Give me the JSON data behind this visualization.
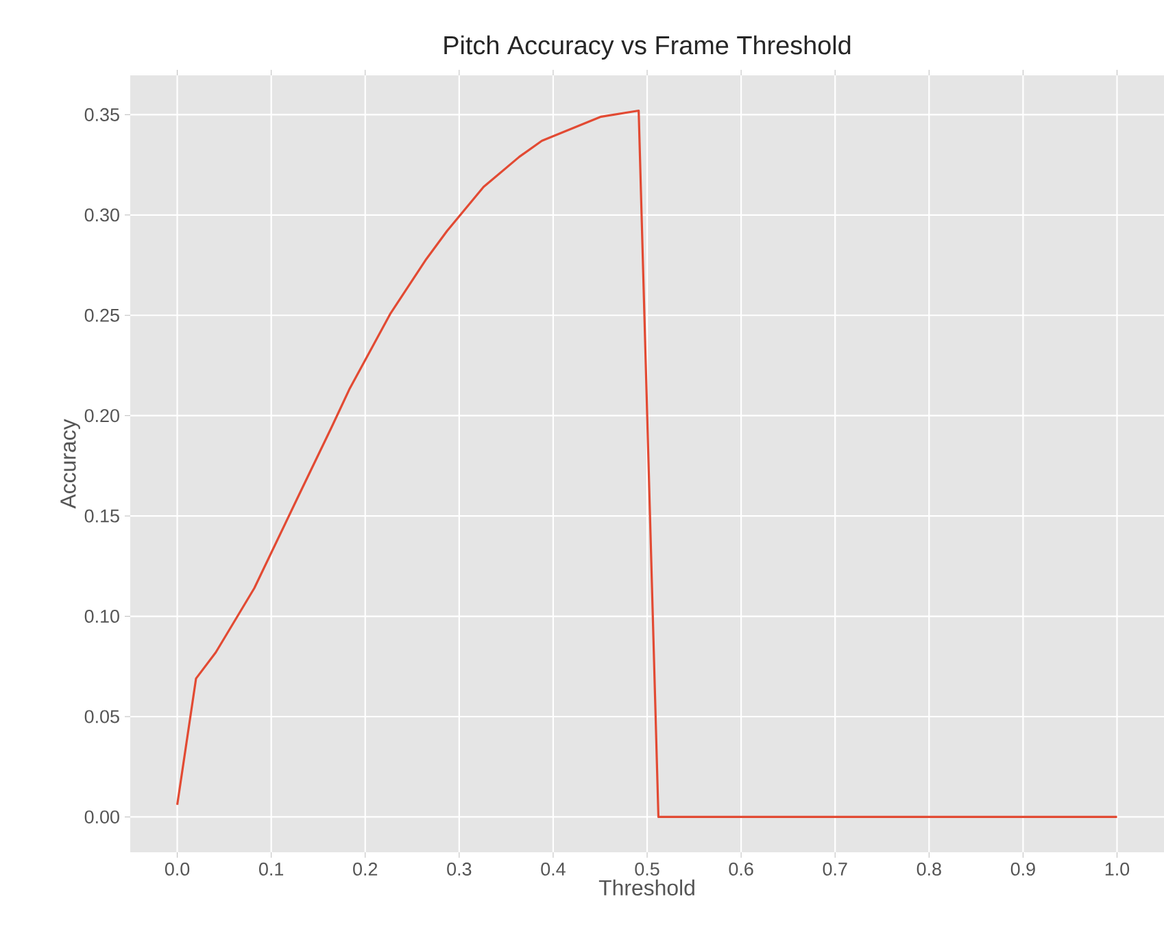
{
  "chart_data": {
    "type": "line",
    "title": "Pitch Accuracy vs Frame Threshold",
    "xlabel": "Threshold",
    "ylabel": "Accuracy",
    "x": [
      0,
      0.02,
      0.041,
      0.082,
      0.128,
      0.164,
      0.183,
      0.227,
      0.265,
      0.287,
      0.326,
      0.364,
      0.388,
      0.451,
      0.491,
      0.512,
      1.0
    ],
    "series": [
      {
        "color": "#e24a33",
        "values": [
          0.006,
          0.069,
          0.082,
          0.114,
          0.159,
          0.194,
          0.213,
          0.251,
          0.278,
          0.292,
          0.314,
          0.329,
          0.337,
          0.349,
          0.352,
          0.0,
          0.0
        ]
      }
    ],
    "xlim": [
      -0.05,
      1.05
    ],
    "ylim": [
      -0.0176,
      0.3696
    ],
    "xticks": [
      {
        "value": 0,
        "label": "0.0"
      },
      {
        "value": 0.1,
        "label": "0.1"
      },
      {
        "value": 0.2,
        "label": "0.2"
      },
      {
        "value": 0.3,
        "label": "0.3"
      },
      {
        "value": 0.4,
        "label": "0.4"
      },
      {
        "value": 0.5,
        "label": "0.5"
      },
      {
        "value": 0.6,
        "label": "0.6"
      },
      {
        "value": 0.7,
        "label": "0.7"
      },
      {
        "value": 0.8,
        "label": "0.8"
      },
      {
        "value": 0.9,
        "label": "0.9"
      },
      {
        "value": 1.0,
        "label": "1.0"
      }
    ],
    "yticks": [
      {
        "value": 0,
        "label": "0.00"
      },
      {
        "value": 0.05,
        "label": "0.05"
      },
      {
        "value": 0.1,
        "label": "0.10"
      },
      {
        "value": 0.15,
        "label": "0.15"
      },
      {
        "value": 0.2,
        "label": "0.20"
      },
      {
        "value": 0.25,
        "label": "0.25"
      },
      {
        "value": 0.3,
        "label": "0.30"
      },
      {
        "value": 0.35,
        "label": "0.35"
      }
    ],
    "grid": true,
    "marker": "none",
    "line_style": "solid"
  }
}
